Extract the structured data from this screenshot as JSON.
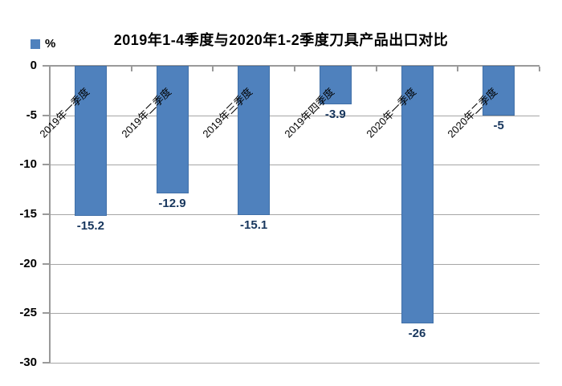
{
  "chart_data": {
    "type": "bar",
    "title": "2019年1-4季度与2020年1-2季度刀具产品出口对比",
    "legend_label": "%",
    "categories": [
      "2019年一季度",
      "2019年二季度",
      "2019年三季度",
      "2019年四季度",
      "2020年一季度",
      "2020年二季度"
    ],
    "values": [
      -15.2,
      -12.9,
      -15.1,
      -3.9,
      -26,
      -5
    ],
    "data_labels": [
      "-15.2",
      "-12.9",
      "-15.1",
      "-3.9",
      "-26",
      "-5"
    ],
    "ylabel": "%",
    "ylim": [
      -30,
      0
    ],
    "y_ticks": [
      0,
      -5,
      -10,
      -15,
      -20,
      -25,
      -30
    ],
    "grid": true,
    "legend_position": "top-left",
    "bar_color": "#4F81BD",
    "grid_color": "#A6A6A6",
    "axis_color": "#9A9A9A",
    "data_label_color": "#17365D"
  }
}
